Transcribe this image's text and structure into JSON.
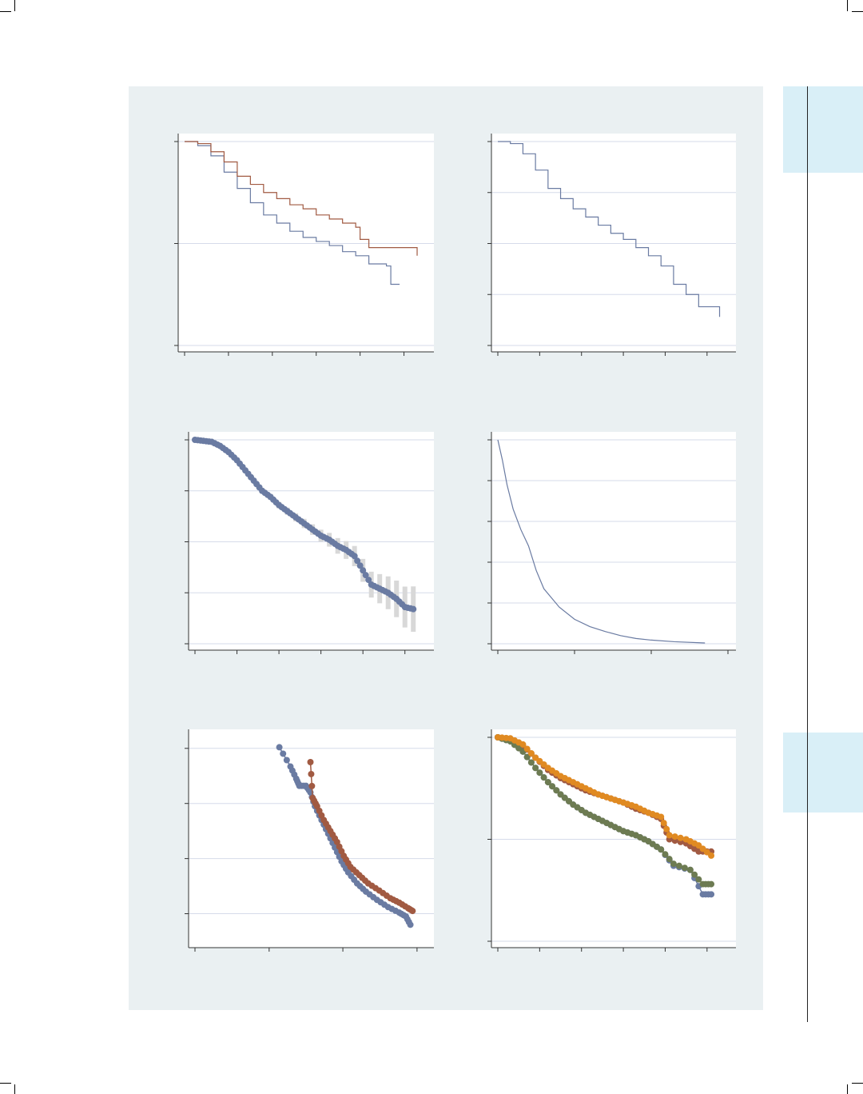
{
  "page": {
    "panel_color": "#eaf0f2",
    "thumb_tab_color": "#d9eff7",
    "grid_color": "#d6dbea",
    "axis_color": "#333333"
  },
  "chart_data": [
    {
      "type": "line",
      "step": true,
      "xlim": [
        0,
        5.5
      ],
      "ylim": [
        0,
        1
      ],
      "ticks_x": [
        0,
        1,
        2,
        3,
        4,
        5
      ],
      "ticks_y": [
        0,
        0.5,
        1
      ],
      "grid_y": [
        0,
        0.5,
        1
      ],
      "series": [
        {
          "color": "#6a7ba2",
          "points": [
            [
              0,
              1
            ],
            [
              0.3,
              0.98
            ],
            [
              0.6,
              0.93
            ],
            [
              0.9,
              0.85
            ],
            [
              1.2,
              0.77
            ],
            [
              1.5,
              0.7
            ],
            [
              1.8,
              0.64
            ],
            [
              2.1,
              0.6
            ],
            [
              2.4,
              0.56
            ],
            [
              2.7,
              0.53
            ],
            [
              3.0,
              0.51
            ],
            [
              3.3,
              0.49
            ],
            [
              3.6,
              0.46
            ],
            [
              3.9,
              0.44
            ],
            [
              4.2,
              0.4
            ],
            [
              4.6,
              0.39
            ],
            [
              4.7,
              0.3
            ],
            [
              4.9,
              0.3
            ]
          ]
        },
        {
          "color": "#a15a42",
          "points": [
            [
              0,
              1
            ],
            [
              0.3,
              0.99
            ],
            [
              0.6,
              0.95
            ],
            [
              0.9,
              0.9
            ],
            [
              1.2,
              0.83
            ],
            [
              1.5,
              0.79
            ],
            [
              1.8,
              0.75
            ],
            [
              2.1,
              0.72
            ],
            [
              2.4,
              0.69
            ],
            [
              2.7,
              0.67
            ],
            [
              3.0,
              0.64
            ],
            [
              3.3,
              0.62
            ],
            [
              3.6,
              0.6
            ],
            [
              3.9,
              0.58
            ],
            [
              4.0,
              0.52
            ],
            [
              4.2,
              0.48
            ],
            [
              5.3,
              0.44
            ]
          ]
        }
      ]
    },
    {
      "type": "line",
      "step": true,
      "xlim": [
        0,
        5.5
      ],
      "ylim": [
        0,
        1
      ],
      "ticks_x": [
        0,
        1,
        2,
        3,
        4,
        5
      ],
      "ticks_y": [
        0,
        0.25,
        0.5,
        0.75,
        1
      ],
      "grid_y": [
        0,
        0.25,
        0.5,
        0.75,
        1
      ],
      "series": [
        {
          "color": "#6a7ba2",
          "points": [
            [
              0,
              1
            ],
            [
              0.3,
              0.99
            ],
            [
              0.6,
              0.94
            ],
            [
              0.9,
              0.86
            ],
            [
              1.2,
              0.77
            ],
            [
              1.5,
              0.72
            ],
            [
              1.8,
              0.67
            ],
            [
              2.1,
              0.63
            ],
            [
              2.4,
              0.59
            ],
            [
              2.7,
              0.55
            ],
            [
              3.0,
              0.52
            ],
            [
              3.3,
              0.48
            ],
            [
              3.6,
              0.44
            ],
            [
              3.9,
              0.39
            ],
            [
              4.2,
              0.3
            ],
            [
              4.5,
              0.25
            ],
            [
              4.8,
              0.19
            ],
            [
              5.3,
              0.14
            ]
          ]
        }
      ]
    },
    {
      "type": "scatter",
      "connect": true,
      "ci_band": true,
      "xlim": [
        0,
        5.5
      ],
      "ylim": [
        0,
        1
      ],
      "ticks_x": [
        0,
        1,
        2,
        3,
        4,
        5
      ],
      "ticks_y": [
        0,
        0.25,
        0.5,
        0.75,
        1
      ],
      "grid_y": [
        0,
        0.25,
        0.5,
        0.75,
        1
      ],
      "series": [
        {
          "color": "#6a7ba2",
          "band_color": "#d8d8d8",
          "points": [
            [
              0,
              1
            ],
            [
              0.2,
              0.995
            ],
            [
              0.4,
              0.99
            ],
            [
              0.6,
              0.97
            ],
            [
              0.8,
              0.94
            ],
            [
              1.0,
              0.9
            ],
            [
              1.2,
              0.85
            ],
            [
              1.4,
              0.8
            ],
            [
              1.6,
              0.75
            ],
            [
              1.8,
              0.72
            ],
            [
              2.0,
              0.68
            ],
            [
              2.2,
              0.65
            ],
            [
              2.4,
              0.62
            ],
            [
              2.6,
              0.59
            ],
            [
              2.8,
              0.56
            ],
            [
              3.0,
              0.53
            ],
            [
              3.2,
              0.51
            ],
            [
              3.4,
              0.48
            ],
            [
              3.6,
              0.46
            ],
            [
              3.8,
              0.43
            ],
            [
              4.0,
              0.36
            ],
            [
              4.2,
              0.29
            ],
            [
              4.4,
              0.27
            ],
            [
              4.6,
              0.25
            ],
            [
              4.8,
              0.22
            ],
            [
              5.0,
              0.18
            ],
            [
              5.2,
              0.17
            ]
          ]
        }
      ]
    },
    {
      "type": "line",
      "xlim": [
        0,
        15
      ],
      "ylim": [
        0,
        5
      ],
      "ticks_x": [
        0,
        5,
        10,
        15
      ],
      "ticks_y": [
        0,
        1,
        2,
        3,
        4,
        5
      ],
      "grid_y": [
        0,
        1,
        2,
        3,
        4,
        5
      ],
      "series": [
        {
          "color": "#6a7ba2",
          "points": [
            [
              0,
              5
            ],
            [
              0.3,
              4.5
            ],
            [
              0.6,
              3.9
            ],
            [
              1.0,
              3.3
            ],
            [
              1.5,
              2.8
            ],
            [
              2.0,
              2.4
            ],
            [
              2.5,
              1.8
            ],
            [
              3.0,
              1.35
            ],
            [
              4.0,
              0.9
            ],
            [
              5.0,
              0.6
            ],
            [
              6.0,
              0.42
            ],
            [
              7.0,
              0.3
            ],
            [
              8.0,
              0.2
            ],
            [
              9.0,
              0.13
            ],
            [
              10.0,
              0.09
            ],
            [
              11.5,
              0.05
            ],
            [
              13.5,
              0.02
            ]
          ]
        }
      ]
    },
    {
      "type": "scatter",
      "connect": true,
      "xlim": [
        -5,
        0.2
      ],
      "ylim": [
        -3.5,
        0.2
      ],
      "ticks_x": [
        -5,
        -3.33,
        -1.67,
        0
      ],
      "ticks_y": [
        -3,
        -2,
        -1,
        0
      ],
      "grid_y": [
        -3,
        -2,
        -1,
        0
      ],
      "series": [
        {
          "color": "#6a7ba2",
          "points": [
            [
              -3.1,
              0.02
            ],
            [
              -2.85,
              -0.33
            ],
            [
              -2.72,
              -0.55
            ],
            [
              -2.65,
              -0.68
            ],
            [
              -2.5,
              -0.68
            ],
            [
              -2.4,
              -0.8
            ],
            [
              -2.3,
              -1.05
            ],
            [
              -2.15,
              -1.3
            ],
            [
              -2.0,
              -1.55
            ],
            [
              -1.85,
              -1.8
            ],
            [
              -1.7,
              -2.05
            ],
            [
              -1.55,
              -2.25
            ],
            [
              -1.35,
              -2.45
            ],
            [
              -1.15,
              -2.6
            ],
            [
              -0.9,
              -2.75
            ],
            [
              -0.65,
              -2.88
            ],
            [
              -0.4,
              -2.98
            ],
            [
              -0.25,
              -3.05
            ],
            [
              -0.15,
              -3.2
            ]
          ]
        },
        {
          "color": "#a15a42",
          "points": [
            [
              -2.4,
              -0.25
            ],
            [
              -2.35,
              -0.9
            ],
            [
              -2.25,
              -1.05
            ],
            [
              -2.1,
              -1.3
            ],
            [
              -1.95,
              -1.5
            ],
            [
              -1.8,
              -1.7
            ],
            [
              -1.65,
              -1.95
            ],
            [
              -1.5,
              -2.15
            ],
            [
              -1.3,
              -2.3
            ],
            [
              -1.1,
              -2.45
            ],
            [
              -0.85,
              -2.58
            ],
            [
              -0.6,
              -2.72
            ],
            [
              -0.4,
              -2.8
            ],
            [
              -0.2,
              -2.9
            ],
            [
              -0.1,
              -2.95
            ]
          ]
        }
      ]
    },
    {
      "type": "scatter",
      "connect": true,
      "xlim": [
        0,
        5.5
      ],
      "ylim": [
        0,
        1
      ],
      "ticks_x": [
        0,
        1,
        2,
        3,
        4,
        5
      ],
      "ticks_y": [
        0,
        0.5,
        1
      ],
      "grid_y": [
        0,
        0.5,
        1
      ],
      "series": [
        {
          "color": "#a15a42",
          "points": [
            [
              0,
              1
            ],
            [
              0.3,
              0.99
            ],
            [
              0.6,
              0.96
            ],
            [
              0.9,
              0.9
            ],
            [
              1.2,
              0.84
            ],
            [
              1.5,
              0.8
            ],
            [
              1.8,
              0.77
            ],
            [
              2.1,
              0.74
            ],
            [
              2.4,
              0.72
            ],
            [
              2.7,
              0.7
            ],
            [
              3.0,
              0.68
            ],
            [
              3.3,
              0.65
            ],
            [
              3.6,
              0.63
            ],
            [
              3.9,
              0.6
            ],
            [
              4.1,
              0.5
            ],
            [
              4.5,
              0.48
            ],
            [
              4.8,
              0.44
            ],
            [
              5.1,
              0.44
            ]
          ]
        },
        {
          "color": "#6a7ba2",
          "points": [
            [
              0,
              1
            ],
            [
              0.3,
              0.98
            ],
            [
              0.6,
              0.93
            ],
            [
              0.9,
              0.85
            ],
            [
              1.2,
              0.78
            ],
            [
              1.5,
              0.72
            ],
            [
              1.8,
              0.67
            ],
            [
              2.1,
              0.63
            ],
            [
              2.4,
              0.6
            ],
            [
              2.7,
              0.57
            ],
            [
              3.0,
              0.54
            ],
            [
              3.3,
              0.52
            ],
            [
              3.6,
              0.49
            ],
            [
              3.9,
              0.45
            ],
            [
              4.2,
              0.37
            ],
            [
              4.6,
              0.35
            ],
            [
              4.9,
              0.23
            ],
            [
              5.1,
              0.23
            ]
          ]
        },
        {
          "color": "#6d7b52",
          "points": [
            [
              0,
              1
            ],
            [
              0.3,
              0.98
            ],
            [
              0.6,
              0.93
            ],
            [
              0.9,
              0.85
            ],
            [
              1.2,
              0.78
            ],
            [
              1.5,
              0.72
            ],
            [
              1.8,
              0.67
            ],
            [
              2.1,
              0.63
            ],
            [
              2.4,
              0.6
            ],
            [
              2.7,
              0.57
            ],
            [
              3.0,
              0.54
            ],
            [
              3.3,
              0.52
            ],
            [
              3.6,
              0.49
            ],
            [
              3.9,
              0.45
            ],
            [
              4.2,
              0.38
            ],
            [
              4.6,
              0.35
            ],
            [
              4.9,
              0.28
            ],
            [
              5.1,
              0.28
            ]
          ]
        },
        {
          "color": "#e08a22",
          "points": [
            [
              0,
              1
            ],
            [
              0.3,
              0.995
            ],
            [
              0.6,
              0.965
            ],
            [
              0.9,
              0.9
            ],
            [
              1.2,
              0.85
            ],
            [
              1.5,
              0.81
            ],
            [
              1.8,
              0.78
            ],
            [
              2.1,
              0.75
            ],
            [
              2.4,
              0.72
            ],
            [
              2.7,
              0.7
            ],
            [
              3.0,
              0.68
            ],
            [
              3.3,
              0.66
            ],
            [
              3.6,
              0.63
            ],
            [
              3.9,
              0.61
            ],
            [
              4.1,
              0.52
            ],
            [
              4.5,
              0.5
            ],
            [
              4.8,
              0.47
            ],
            [
              5.1,
              0.42
            ]
          ]
        }
      ]
    }
  ]
}
